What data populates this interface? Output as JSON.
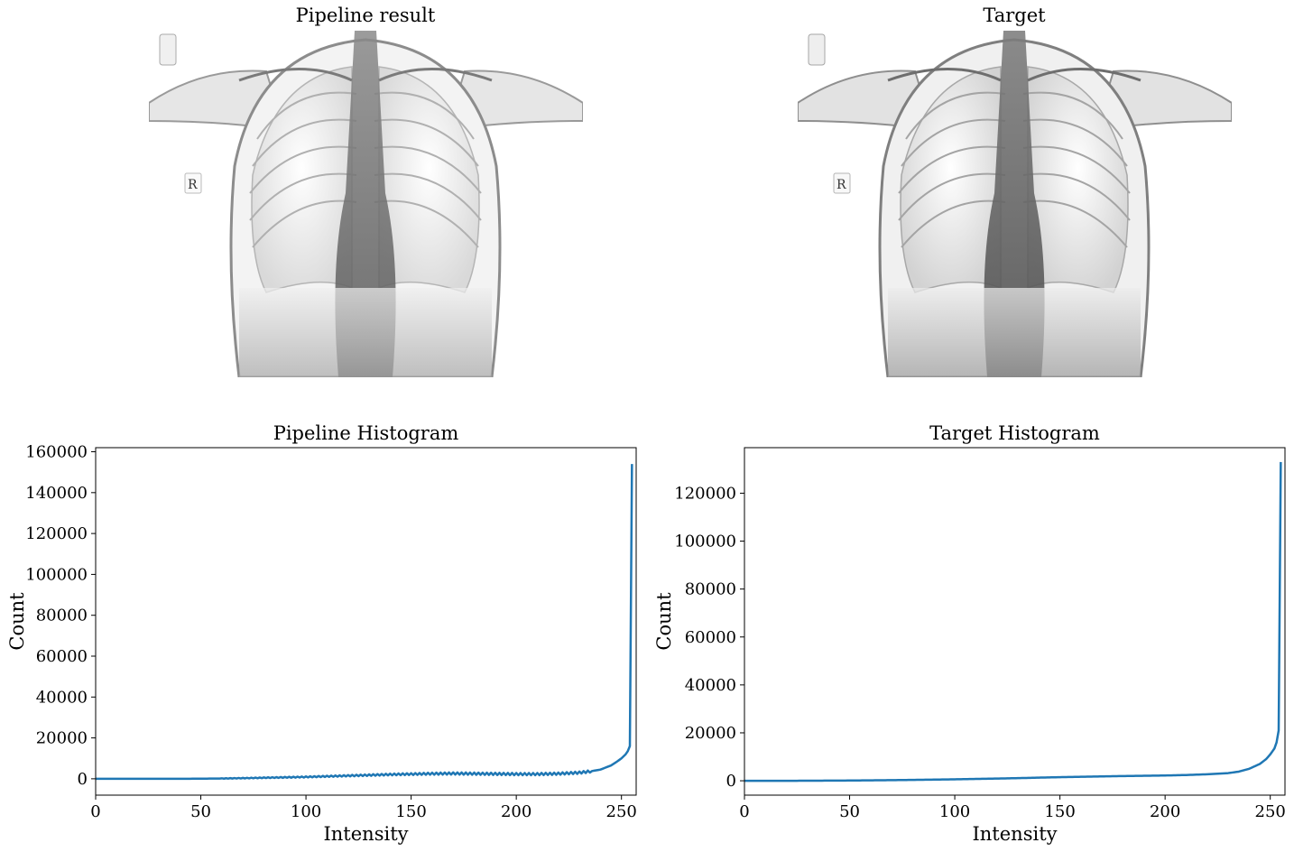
{
  "panels": {
    "pipeline_image_title": "Pipeline result",
    "target_image_title": "Target",
    "marker_letter": "R"
  },
  "chart_data": [
    {
      "type": "line",
      "title": "Pipeline Histogram",
      "xlabel": "Intensity",
      "ylabel": "Count",
      "xlim": [
        0,
        257
      ],
      "ylim": [
        -8000,
        162000
      ],
      "xticks": [
        0,
        50,
        100,
        150,
        200,
        250
      ],
      "yticks": [
        0,
        20000,
        40000,
        60000,
        80000,
        100000,
        120000,
        140000,
        160000
      ],
      "color": "#1f77b4",
      "grid": false,
      "series_desc": "oscillating",
      "x": [
        0,
        20,
        40,
        50,
        60,
        70,
        80,
        90,
        100,
        110,
        120,
        130,
        140,
        150,
        160,
        170,
        180,
        190,
        200,
        210,
        220,
        230,
        235,
        240,
        245,
        248,
        250,
        252,
        253,
        254,
        255
      ],
      "y": [
        0,
        0,
        0,
        50,
        150,
        300,
        500,
        700,
        900,
        1200,
        1500,
        1800,
        2100,
        2300,
        2500,
        2600,
        2500,
        2400,
        2300,
        2300,
        2500,
        3000,
        3600,
        4500,
        6500,
        8500,
        10000,
        12000,
        13500,
        16000,
        154000
      ]
    },
    {
      "type": "line",
      "title": "Target Histogram",
      "xlabel": "Intensity",
      "ylabel": "Count",
      "xlim": [
        0,
        257
      ],
      "ylim": [
        -6000,
        139000
      ],
      "xticks": [
        0,
        50,
        100,
        150,
        200,
        250
      ],
      "yticks": [
        0,
        20000,
        40000,
        60000,
        80000,
        100000,
        120000
      ],
      "color": "#1f77b4",
      "grid": false,
      "series_desc": "smooth",
      "x": [
        0,
        25,
        50,
        75,
        100,
        125,
        150,
        175,
        200,
        210,
        220,
        230,
        235,
        240,
        245,
        248,
        250,
        252,
        253,
        254,
        255
      ],
      "y": [
        0,
        0,
        100,
        300,
        600,
        1000,
        1500,
        1900,
        2200,
        2400,
        2700,
        3200,
        3800,
        5000,
        7000,
        9000,
        11000,
        13500,
        16000,
        21000,
        133000
      ]
    }
  ]
}
